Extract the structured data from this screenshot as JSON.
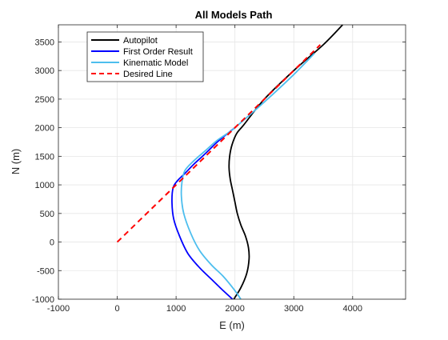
{
  "chart_data": {
    "type": "line",
    "title": "All Models Path",
    "xlabel": "E (m)",
    "ylabel": "N (m)",
    "xlim": [
      -1000,
      4900
    ],
    "ylim": [
      -1000,
      3800
    ],
    "xticks": [
      -1000,
      0,
      1000,
      2000,
      3000,
      4000
    ],
    "yticks": [
      -1000,
      -500,
      0,
      500,
      1000,
      1500,
      2000,
      2500,
      3000,
      3500
    ],
    "grid": true,
    "legend_position": "top-left",
    "series": [
      {
        "name": "Autopilot",
        "color": "#000000",
        "style": "solid",
        "x": [
          1980,
          2100,
          2200,
          2240,
          2230,
          2180,
          2100,
          2040,
          2000,
          1960,
          1920,
          1900,
          1910,
          1950,
          2030,
          2150,
          2500,
          3000,
          3500,
          3830
        ],
        "y": [
          -1000,
          -800,
          -550,
          -300,
          -100,
          100,
          300,
          500,
          700,
          900,
          1100,
          1300,
          1500,
          1700,
          1900,
          2050,
          2500,
          3000,
          3450,
          3800
        ]
      },
      {
        "name": "First Order Result",
        "color": "#0000ff",
        "style": "solid",
        "x": [
          1960,
          1800,
          1600,
          1400,
          1200,
          1060,
          960,
          930,
          950,
          1030,
          1150,
          1300,
          1500,
          1700,
          1900,
          2000
        ],
        "y": [
          -1000,
          -850,
          -650,
          -450,
          -200,
          100,
          400,
          700,
          950,
          1080,
          1200,
          1360,
          1550,
          1750,
          1920,
          2000
        ]
      },
      {
        "name": "Kinematic Model",
        "color": "#4dbeee",
        "style": "solid",
        "x": [
          2100,
          2000,
          1800,
          1600,
          1400,
          1250,
          1130,
          1090,
          1100,
          1150,
          1300,
          1500,
          1700,
          1900,
          2000,
          2500,
          3000,
          3350
        ],
        "y": [
          -1000,
          -850,
          -600,
          -400,
          -150,
          150,
          500,
          800,
          1050,
          1250,
          1420,
          1600,
          1780,
          1920,
          2000,
          2450,
          2930,
          3300
        ]
      },
      {
        "name": "Desired Line",
        "color": "#ff0000",
        "style": "dashed",
        "x": [
          0,
          3450
        ],
        "y": [
          0,
          3450
        ]
      }
    ]
  }
}
